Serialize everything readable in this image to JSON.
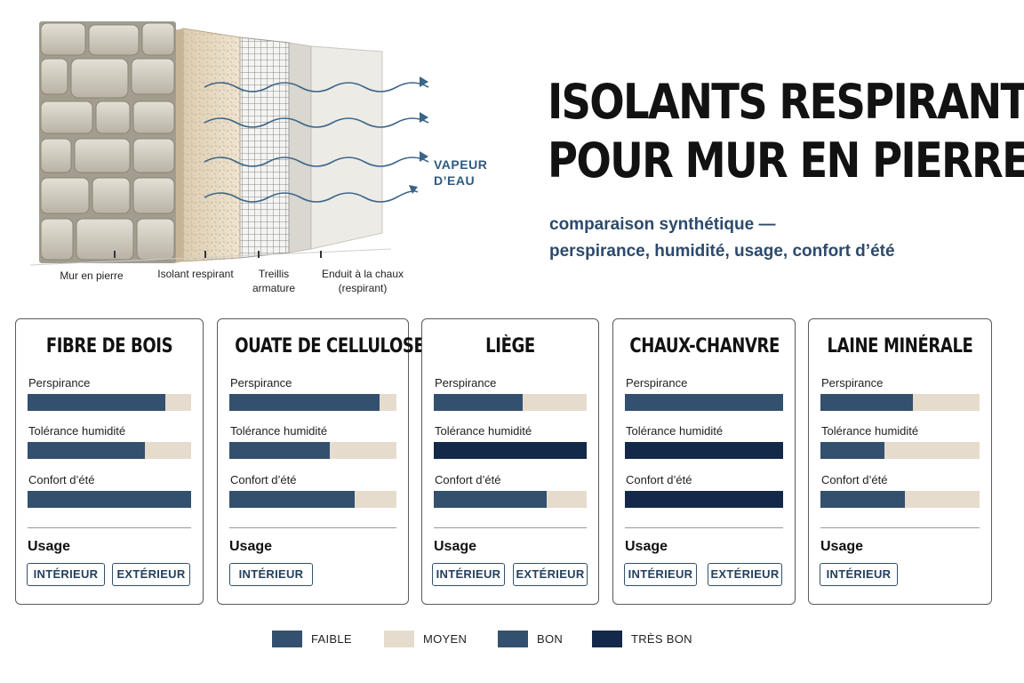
{
  "illustration": {
    "vapour_label": [
      "VAPEUR",
      "D’EAU"
    ],
    "layers": [
      "Mur en pierre",
      "Isolant respirant",
      "Treillis armature",
      "Enduit à la chaux (respirant)"
    ]
  },
  "header": {
    "title": [
      "ISOLANTS RESPIRANTS",
      "POUR MUR EN PIERRE"
    ],
    "subtitle": [
      "comparaison synthétique —",
      "perspirance, humidité, usage, confort d’été"
    ]
  },
  "criteria_labels": [
    "Perspirance",
    "Tolérance humidité",
    "Confort d’été"
  ],
  "usage_label": "Usage",
  "colors": {
    "faible": "#33506e",
    "moyen": "#e6dccd",
    "bon": "#33506e",
    "tres_bon": "#14294a",
    "track": "#e6dccd"
  },
  "materials": [
    {
      "name": "FIBRE DE BOIS",
      "levels": [
        {
          "criterion": "Perspirance",
          "fill_fraction": 0.84,
          "color": "#33506e"
        },
        {
          "criterion": "Tolérance humidité",
          "fill_fraction": 0.72,
          "color": "#33506e"
        },
        {
          "criterion": "Confort d’été",
          "fill_fraction": 1.0,
          "color": "#33506e"
        }
      ],
      "usage": [
        "INTÉRIEUR",
        "EXTÉRIEUR"
      ]
    },
    {
      "name": "OUATE DE CELLULOSE",
      "levels": [
        {
          "criterion": "Perspirance",
          "fill_fraction": 0.9,
          "color": "#33506e"
        },
        {
          "criterion": "Tolérance humidité",
          "fill_fraction": 0.6,
          "color": "#33506e"
        },
        {
          "criterion": "Confort d’été",
          "fill_fraction": 0.75,
          "color": "#33506e"
        }
      ],
      "usage": [
        "INTÉRIEUR"
      ]
    },
    {
      "name": "LIÈGE",
      "levels": [
        {
          "criterion": "Perspirance",
          "fill_fraction": 0.58,
          "color": "#33506e"
        },
        {
          "criterion": "Tolérance humidité",
          "fill_fraction": 1.0,
          "color": "#14294a"
        },
        {
          "criterion": "Confort d’été",
          "fill_fraction": 0.74,
          "color": "#33506e"
        }
      ],
      "usage": [
        "INTÉRIEUR",
        "EXTÉRIEUR"
      ]
    },
    {
      "name": "CHAUX-CHANVRE",
      "levels": [
        {
          "criterion": "Perspirance",
          "fill_fraction": 1.0,
          "color": "#33506e"
        },
        {
          "criterion": "Tolérance humidité",
          "fill_fraction": 1.0,
          "color": "#14294a"
        },
        {
          "criterion": "Confort d’été",
          "fill_fraction": 1.0,
          "color": "#14294a"
        }
      ],
      "usage": [
        "INTÉRIEUR",
        "EXTÉRIEUR"
      ]
    },
    {
      "name": "LAINE MINÉRALE",
      "levels": [
        {
          "criterion": "Perspirance",
          "fill_fraction": 0.58,
          "color": "#33506e"
        },
        {
          "criterion": "Tolérance humidité",
          "fill_fraction": 0.4,
          "color": "#33506e"
        },
        {
          "criterion": "Confort d’été",
          "fill_fraction": 0.53,
          "color": "#33506e"
        }
      ],
      "usage": [
        "INTÉRIEUR"
      ]
    }
  ],
  "legend": [
    {
      "label": "FAIBLE",
      "color": "#33506e"
    },
    {
      "label": "MOYEN",
      "color": "#e6dccd"
    },
    {
      "label": "BON",
      "color": "#33506e"
    },
    {
      "label": "TRÈS BON",
      "color": "#14294a"
    }
  ]
}
